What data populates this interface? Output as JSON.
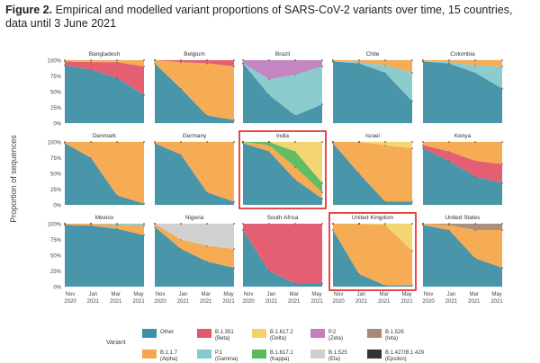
{
  "figure": {
    "label": "Figure 2.",
    "caption": "Empirical and modelled variant proportions of SARS-CoV-2 variants over time, 15 countries, data until 3 June 2021"
  },
  "axes": {
    "ylabel": "Proportion of sequences",
    "yticks": [
      "100%",
      "75%",
      "50%",
      "25%",
      "0%"
    ],
    "xticks": [
      {
        "month": "Nov",
        "year": "2020"
      },
      {
        "month": "Jan",
        "year": "2021"
      },
      {
        "month": "Mar",
        "year": "2021"
      },
      {
        "month": "May",
        "year": "2021"
      }
    ]
  },
  "legend": {
    "title": "Variant",
    "items": [
      {
        "key": "other",
        "name": "Other",
        "sub": "",
        "color": "#3f8fa5"
      },
      {
        "key": "alpha",
        "name": "B.1.1.7",
        "sub": "(Alpha)",
        "color": "#f5a64c"
      },
      {
        "key": "beta",
        "name": "B.1.351",
        "sub": "(Beta)",
        "color": "#e4566a"
      },
      {
        "key": "gamma",
        "name": "P.1",
        "sub": "(Gamma)",
        "color": "#86c9cc"
      },
      {
        "key": "delta",
        "name": "B.1.617.2",
        "sub": "(Delta)",
        "color": "#f2d36a"
      },
      {
        "key": "kappa",
        "name": "B.1.617.1",
        "sub": "(Kappa)",
        "color": "#5bb85b"
      },
      {
        "key": "zeta",
        "name": "P.2",
        "sub": "(Zeta)",
        "color": "#c07fc0"
      },
      {
        "key": "eta",
        "name": "B.1.525",
        "sub": "(Eta)",
        "color": "#cfcfcf"
      },
      {
        "key": "iota",
        "name": "B.1.526",
        "sub": "(Iota)",
        "color": "#a88a74"
      },
      {
        "key": "epsilon",
        "name": "B.1.427/B.1.429",
        "sub": "(Epsilon)",
        "color": "#333333"
      }
    ]
  },
  "highlight_color": "#e0201a",
  "chart_data": [
    {
      "type": "area",
      "title": "Bangladesh",
      "x": [
        0,
        0.33,
        0.66,
        1
      ],
      "highlighted": false,
      "series": [
        {
          "key": "other",
          "values": [
            0.92,
            0.85,
            0.72,
            0.45
          ]
        },
        {
          "key": "beta",
          "values": [
            0.06,
            0.12,
            0.25,
            0.45
          ]
        },
        {
          "key": "alpha",
          "values": [
            0.02,
            0.03,
            0.03,
            0.1
          ]
        }
      ]
    },
    {
      "type": "area",
      "title": "Belgium",
      "x": [
        0,
        0.33,
        0.66,
        1
      ],
      "highlighted": false,
      "series": [
        {
          "key": "other",
          "values": [
            0.95,
            0.55,
            0.12,
            0.05
          ]
        },
        {
          "key": "alpha",
          "values": [
            0.05,
            0.42,
            0.83,
            0.85
          ]
        },
        {
          "key": "beta",
          "values": [
            0.0,
            0.03,
            0.05,
            0.1
          ]
        }
      ]
    },
    {
      "type": "area",
      "title": "Brazil",
      "x": [
        0,
        0.33,
        0.66,
        1
      ],
      "highlighted": false,
      "series": [
        {
          "key": "other",
          "values": [
            0.95,
            0.45,
            0.12,
            0.3
          ]
        },
        {
          "key": "gamma",
          "values": [
            0.0,
            0.25,
            0.65,
            0.6
          ]
        },
        {
          "key": "zeta",
          "values": [
            0.05,
            0.3,
            0.23,
            0.1
          ]
        }
      ]
    },
    {
      "type": "area",
      "title": "Chile",
      "x": [
        0,
        0.33,
        0.66,
        1
      ],
      "highlighted": false,
      "series": [
        {
          "key": "other",
          "values": [
            0.98,
            0.95,
            0.8,
            0.35
          ]
        },
        {
          "key": "gamma",
          "values": [
            0.0,
            0.02,
            0.12,
            0.45
          ]
        },
        {
          "key": "alpha",
          "values": [
            0.02,
            0.03,
            0.08,
            0.2
          ]
        }
      ]
    },
    {
      "type": "area",
      "title": "Colombia",
      "x": [
        0,
        0.33,
        0.66,
        1
      ],
      "highlighted": false,
      "series": [
        {
          "key": "other",
          "values": [
            0.98,
            0.95,
            0.8,
            0.55
          ]
        },
        {
          "key": "gamma",
          "values": [
            0.0,
            0.02,
            0.12,
            0.35
          ]
        },
        {
          "key": "alpha",
          "values": [
            0.02,
            0.03,
            0.08,
            0.1
          ]
        }
      ]
    },
    {
      "type": "area",
      "title": "Denmark",
      "x": [
        0,
        0.33,
        0.66,
        1
      ],
      "highlighted": false,
      "series": [
        {
          "key": "other",
          "values": [
            0.98,
            0.75,
            0.15,
            0.02
          ]
        },
        {
          "key": "alpha",
          "values": [
            0.02,
            0.25,
            0.85,
            0.98
          ]
        }
      ]
    },
    {
      "type": "area",
      "title": "Germany",
      "x": [
        0,
        0.33,
        0.66,
        1
      ],
      "highlighted": false,
      "series": [
        {
          "key": "other",
          "values": [
            0.98,
            0.8,
            0.2,
            0.05
          ]
        },
        {
          "key": "alpha",
          "values": [
            0.02,
            0.2,
            0.8,
            0.95
          ]
        }
      ]
    },
    {
      "type": "area",
      "title": "India",
      "x": [
        0,
        0.33,
        0.66,
        1
      ],
      "highlighted": true,
      "series": [
        {
          "key": "other",
          "values": [
            0.98,
            0.85,
            0.4,
            0.1
          ]
        },
        {
          "key": "alpha",
          "values": [
            0.02,
            0.1,
            0.2,
            0.1
          ]
        },
        {
          "key": "kappa",
          "values": [
            0.0,
            0.05,
            0.25,
            0.15
          ]
        },
        {
          "key": "delta",
          "values": [
            0.0,
            0.0,
            0.15,
            0.65
          ]
        }
      ]
    },
    {
      "type": "area",
      "title": "Israel",
      "x": [
        0,
        0.33,
        0.66,
        1
      ],
      "highlighted": false,
      "series": [
        {
          "key": "other",
          "values": [
            0.98,
            0.5,
            0.05,
            0.05
          ]
        },
        {
          "key": "alpha",
          "values": [
            0.02,
            0.5,
            0.9,
            0.85
          ]
        },
        {
          "key": "delta",
          "values": [
            0.0,
            0.0,
            0.05,
            0.1
          ]
        }
      ]
    },
    {
      "type": "area",
      "title": "Kenya",
      "x": [
        0,
        0.33,
        0.66,
        1
      ],
      "highlighted": false,
      "series": [
        {
          "key": "other",
          "values": [
            0.9,
            0.7,
            0.45,
            0.35
          ]
        },
        {
          "key": "beta",
          "values": [
            0.05,
            0.15,
            0.25,
            0.3
          ]
        },
        {
          "key": "alpha",
          "values": [
            0.05,
            0.15,
            0.3,
            0.35
          ]
        }
      ]
    },
    {
      "type": "area",
      "title": "Mexico",
      "x": [
        0,
        0.33,
        0.66,
        1
      ],
      "highlighted": false,
      "series": [
        {
          "key": "other",
          "values": [
            0.98,
            0.97,
            0.92,
            0.82
          ]
        },
        {
          "key": "alpha",
          "values": [
            0.02,
            0.03,
            0.06,
            0.15
          ]
        },
        {
          "key": "gamma",
          "values": [
            0.0,
            0.0,
            0.02,
            0.03
          ]
        }
      ]
    },
    {
      "type": "area",
      "title": "Nigeria",
      "x": [
        0,
        0.33,
        0.66,
        1
      ],
      "highlighted": false,
      "series": [
        {
          "key": "other",
          "values": [
            0.95,
            0.6,
            0.4,
            0.3
          ]
        },
        {
          "key": "alpha",
          "values": [
            0.05,
            0.15,
            0.25,
            0.3
          ]
        },
        {
          "key": "eta",
          "values": [
            0.0,
            0.25,
            0.35,
            0.4
          ]
        }
      ]
    },
    {
      "type": "area",
      "title": "South Africa",
      "x": [
        0,
        0.33,
        0.66,
        1
      ],
      "highlighted": false,
      "series": [
        {
          "key": "other",
          "values": [
            0.9,
            0.25,
            0.05,
            0.05
          ]
        },
        {
          "key": "beta",
          "values": [
            0.1,
            0.75,
            0.95,
            0.95
          ]
        }
      ]
    },
    {
      "type": "area",
      "title": "United Kingdom",
      "x": [
        0,
        0.33,
        0.66,
        1
      ],
      "highlighted": true,
      "series": [
        {
          "key": "other",
          "values": [
            0.9,
            0.2,
            0.02,
            0.02
          ]
        },
        {
          "key": "alpha",
          "values": [
            0.1,
            0.8,
            0.96,
            0.55
          ]
        },
        {
          "key": "delta",
          "values": [
            0.0,
            0.0,
            0.02,
            0.43
          ]
        }
      ]
    },
    {
      "type": "area",
      "title": "United States",
      "x": [
        0,
        0.33,
        0.66,
        1
      ],
      "highlighted": false,
      "series": [
        {
          "key": "other",
          "values": [
            0.98,
            0.9,
            0.45,
            0.3
          ]
        },
        {
          "key": "alpha",
          "values": [
            0.02,
            0.08,
            0.45,
            0.6
          ]
        },
        {
          "key": "iota",
          "values": [
            0.0,
            0.02,
            0.1,
            0.1
          ]
        }
      ]
    }
  ]
}
